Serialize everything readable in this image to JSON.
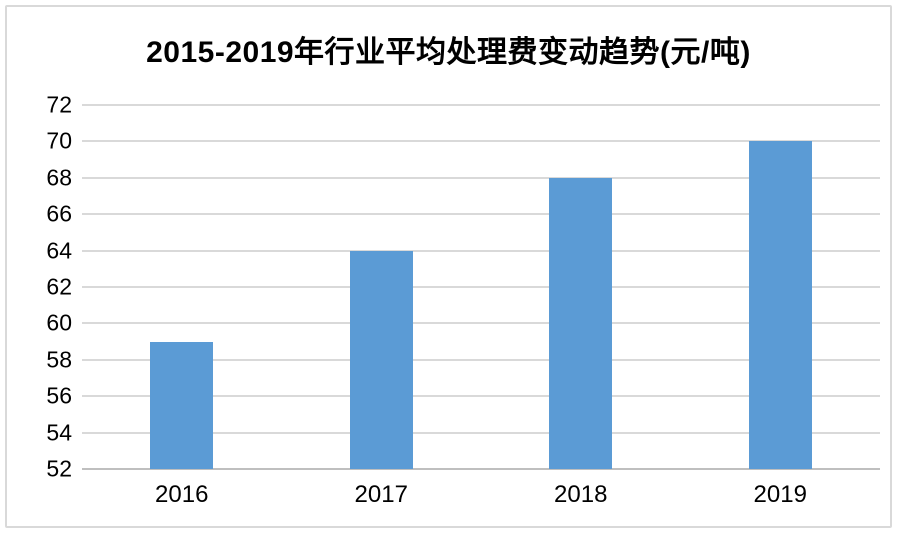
{
  "chart_data": {
    "type": "bar",
    "title": "2015-2019年行业平均处理费变动趋势(元/吨)",
    "categories": [
      "2016",
      "2017",
      "2018",
      "2019"
    ],
    "values": [
      59,
      64,
      68,
      70
    ],
    "xlabel": "",
    "ylabel": "",
    "ylim": [
      52,
      72
    ],
    "ytick_step": 2,
    "ytick_labels": [
      "52",
      "54",
      "56",
      "58",
      "60",
      "62",
      "64",
      "66",
      "68",
      "70",
      "72"
    ],
    "grid": true,
    "legend": "none",
    "bar_color": "#5B9BD5",
    "gridline_color": "#D9D9D9",
    "axis_line_color": "#BFBFBF",
    "frame_color": "#D9D9D9",
    "text_color": "#000000"
  }
}
